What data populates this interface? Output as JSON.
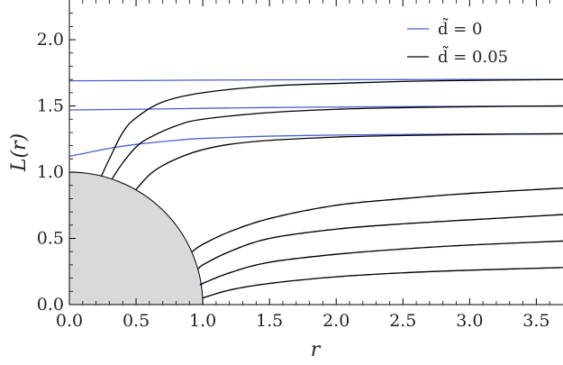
{
  "chart_data": {
    "type": "line",
    "xlabel": "r",
    "ylabel": "L(r)",
    "xlim": [
      0,
      3.7
    ],
    "ylim": [
      0,
      2.3
    ],
    "x_ticks": [
      "0.0",
      "0.5",
      "1.0",
      "1.5",
      "2.0",
      "2.5",
      "3.0",
      "3.5"
    ],
    "y_ticks": [
      "0.0",
      "0.5",
      "1.0",
      "1.5",
      "2.0"
    ],
    "grid": false,
    "legend_position": "top-right",
    "shaded_region": {
      "shape": "quarter-disk",
      "radius": 1.0,
      "color": "#d9d9d9"
    },
    "series": [
      {
        "name": "d̃ = 0",
        "color": "#4a5fd0",
        "curves": [
          {
            "x": [
              0,
              0.5,
              1.0,
              1.5,
              2.0,
              2.5,
              3.0,
              3.7
            ],
            "y": [
              1.69,
              1.692,
              1.695,
              1.697,
              1.698,
              1.699,
              1.7,
              1.7
            ]
          },
          {
            "x": [
              0,
              0.5,
              1.0,
              1.5,
              2.0,
              2.5,
              3.0,
              3.7
            ],
            "y": [
              1.47,
              1.475,
              1.482,
              1.488,
              1.492,
              1.495,
              1.497,
              1.5
            ]
          },
          {
            "x": [
              0,
              0.1,
              0.3,
              0.5,
              0.8,
              1.0,
              1.5,
              2.0,
              2.5,
              3.0,
              3.7
            ],
            "y": [
              1.12,
              1.14,
              1.18,
              1.21,
              1.24,
              1.255,
              1.272,
              1.28,
              1.285,
              1.288,
              1.29
            ]
          },
          {
            "x": [
              0.92,
              1.0,
              1.2,
              1.5,
              2.0,
              2.5,
              3.0,
              3.7
            ],
            "y": [
              0.4,
              0.455,
              0.55,
              0.65,
              0.75,
              0.8,
              0.84,
              0.88
            ]
          },
          {
            "x": [
              0.97,
              1.0,
              1.2,
              1.5,
              2.0,
              2.5,
              3.0,
              3.7
            ],
            "y": [
              0.27,
              0.3,
              0.4,
              0.5,
              0.57,
              0.61,
              0.64,
              0.68
            ]
          },
          {
            "x": [
              0.99,
              1.0,
              1.2,
              1.5,
              2.0,
              2.5,
              3.0,
              3.7
            ],
            "y": [
              0.15,
              0.16,
              0.24,
              0.32,
              0.38,
              0.42,
              0.45,
              0.48
            ]
          },
          {
            "x": [
              1.0,
              1.2,
              1.5,
              2.0,
              2.5,
              3.0,
              3.7
            ],
            "y": [
              0.05,
              0.11,
              0.16,
              0.21,
              0.24,
              0.26,
              0.28
            ]
          }
        ]
      },
      {
        "name": "d̃ = 0.05",
        "color": "#000000",
        "curves": [
          {
            "x": [
              0.24,
              0.3,
              0.4,
              0.5,
              0.7,
              1.0,
              1.5,
              2.0,
              2.5,
              3.0,
              3.7
            ],
            "y": [
              0.97,
              1.1,
              1.3,
              1.41,
              1.53,
              1.6,
              1.65,
              1.67,
              1.685,
              1.693,
              1.7
            ]
          },
          {
            "x": [
              0.32,
              0.4,
              0.5,
              0.6,
              0.8,
              1.0,
              1.5,
              2.0,
              2.5,
              3.0,
              3.7
            ],
            "y": [
              0.95,
              1.07,
              1.19,
              1.26,
              1.35,
              1.4,
              1.45,
              1.475,
              1.487,
              1.494,
              1.5
            ]
          },
          {
            "x": [
              0.5,
              0.6,
              0.7,
              0.85,
              1.0,
              1.2,
              1.5,
              2.0,
              2.5,
              3.0,
              3.7
            ],
            "y": [
              0.87,
              0.98,
              1.05,
              1.12,
              1.17,
              1.21,
              1.24,
              1.265,
              1.277,
              1.284,
              1.29
            ]
          },
          {
            "x": [
              0.92,
              1.0,
              1.2,
              1.5,
              2.0,
              2.5,
              3.0,
              3.7
            ],
            "y": [
              0.4,
              0.455,
              0.55,
              0.65,
              0.75,
              0.8,
              0.84,
              0.88
            ]
          },
          {
            "x": [
              0.97,
              1.0,
              1.2,
              1.5,
              2.0,
              2.5,
              3.0,
              3.7
            ],
            "y": [
              0.27,
              0.3,
              0.4,
              0.5,
              0.57,
              0.61,
              0.64,
              0.68
            ]
          },
          {
            "x": [
              0.99,
              1.0,
              1.2,
              1.5,
              2.0,
              2.5,
              3.0,
              3.7
            ],
            "y": [
              0.15,
              0.16,
              0.24,
              0.32,
              0.38,
              0.42,
              0.45,
              0.48
            ]
          },
          {
            "x": [
              1.0,
              1.2,
              1.5,
              2.0,
              2.5,
              3.0,
              3.7
            ],
            "y": [
              0.05,
              0.11,
              0.16,
              0.21,
              0.24,
              0.26,
              0.28
            ]
          }
        ]
      }
    ],
    "legend": [
      {
        "label": "d̃ = 0",
        "color": "#4a5fd0"
      },
      {
        "label": "d̃ = 0.05",
        "color": "#000000"
      }
    ]
  }
}
